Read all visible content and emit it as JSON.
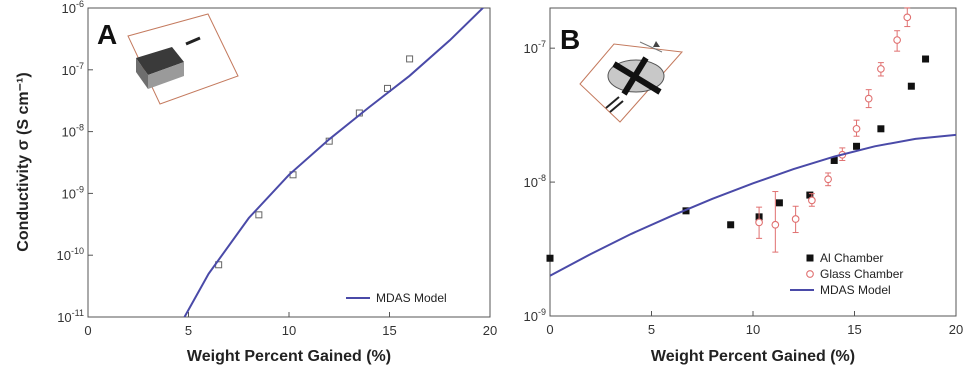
{
  "chart_data": [
    {
      "type": "line",
      "panel_label": "A",
      "xlabel": "Weight Percent Gained (%)",
      "ylabel": "Conductivity σ (S cm⁻¹)",
      "xlim": [
        0,
        20
      ],
      "ylim_log10": [
        -11,
        -6
      ],
      "yscale": "log",
      "x_ticks": [
        "0",
        "5",
        "10",
        "15",
        "20"
      ],
      "y_ticks": [
        {
          "base": "10",
          "exp": "-11",
          "value": 1e-11
        },
        {
          "base": "10",
          "exp": "-10",
          "value": 1e-10
        },
        {
          "base": "10",
          "exp": "-9",
          "value": 1e-09
        },
        {
          "base": "10",
          "exp": "-8",
          "value": 1e-08
        },
        {
          "base": "10",
          "exp": "-7",
          "value": 1e-07
        },
        {
          "base": "10",
          "exp": "-6",
          "value": 1e-06
        }
      ],
      "grid": false,
      "legend_position": "bottom-right",
      "series": [
        {
          "name": "",
          "kind": "scatter",
          "marker": "open-square",
          "color": "#666666",
          "x": [
            6.5,
            8.5,
            10.2,
            12.0,
            13.5,
            14.9,
            16.0
          ],
          "y": [
            7e-11,
            4.5e-10,
            2e-09,
            7e-09,
            2e-08,
            5e-08,
            1.5e-07
          ]
        },
        {
          "name": "MDAS Model",
          "kind": "line",
          "color": "#4a4aa8",
          "x": [
            4.8,
            6,
            8,
            10,
            12,
            14,
            16,
            18,
            20
          ],
          "y": [
            1e-11,
            5e-11,
            4e-10,
            2e-09,
            7.5e-09,
            2.5e-08,
            8e-08,
            3e-07,
            1.3e-06
          ]
        }
      ]
    },
    {
      "type": "line",
      "panel_label": "B",
      "xlabel": "Weight Percent Gained (%)",
      "ylabel": "",
      "xlim": [
        0,
        20
      ],
      "ylim_log10": [
        -9,
        -6.7
      ],
      "yscale": "log",
      "x_ticks": [
        "0",
        "5",
        "10",
        "15",
        "20"
      ],
      "y_ticks": [
        {
          "base": "10",
          "exp": "-9",
          "value": 1e-09
        },
        {
          "base": "10",
          "exp": "-8",
          "value": 1e-08
        },
        {
          "base": "10",
          "exp": "-7",
          "value": 1e-07
        }
      ],
      "grid": false,
      "legend_position": "bottom-right",
      "series": [
        {
          "name": "Al Chamber",
          "kind": "scatter",
          "marker": "filled-square",
          "color": "#111111",
          "x": [
            0,
            6.7,
            8.9,
            10.3,
            11.3,
            12.8,
            14.0,
            15.1,
            16.3,
            17.8,
            18.5
          ],
          "y": [
            2.7e-09,
            6.1e-09,
            4.8e-09,
            5.5e-09,
            7e-09,
            8e-09,
            1.45e-08,
            1.85e-08,
            2.5e-08,
            5.2e-08,
            8.3e-08
          ]
        },
        {
          "name": "Glass Chamber",
          "kind": "scatter",
          "marker": "open-circle",
          "color": "#e07070",
          "x": [
            10.3,
            11.1,
            12.1,
            12.9,
            13.7,
            14.4,
            15.1,
            15.7,
            16.3,
            17.1,
            17.6
          ],
          "y": [
            5e-09,
            4.8e-09,
            5.3e-09,
            7.3e-09,
            1.05e-08,
            1.6e-08,
            2.5e-08,
            4.2e-08,
            7e-08,
            1.15e-07,
            1.7e-07
          ],
          "err_lo": [
            3.8e-09,
            3e-09,
            4.2e-09,
            6.6e-09,
            9.4e-09,
            1.45e-08,
            2.2e-08,
            3.6e-08,
            6.2e-08,
            9.5e-08,
            1.45e-07
          ],
          "err_hi": [
            6.5e-09,
            8.5e-09,
            6.6e-09,
            8.2e-09,
            1.17e-08,
            1.8e-08,
            2.9e-08,
            4.9e-08,
            7.8e-08,
            1.35e-07,
            2e-07
          ]
        },
        {
          "name": "MDAS Model",
          "kind": "line",
          "color": "#4a4aa8",
          "x": [
            0,
            2,
            4,
            6,
            8,
            10,
            12,
            14,
            16,
            18,
            20
          ],
          "y": [
            2e-09,
            2.9e-09,
            4.1e-09,
            5.6e-09,
            7.5e-09,
            9.8e-09,
            1.25e-08,
            1.55e-08,
            1.85e-08,
            2.1e-08,
            2.25e-08
          ]
        }
      ]
    }
  ]
}
